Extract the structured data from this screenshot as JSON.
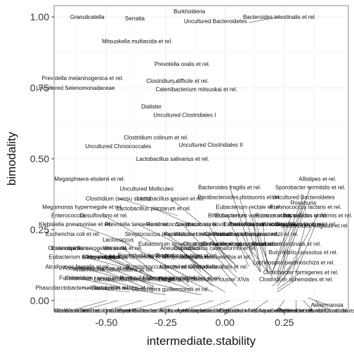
{
  "chart_data": {
    "type": "scatter",
    "xlabel": "intermediate.stability",
    "ylabel": "bimodality",
    "xlim": [
      -0.72,
      0.52
    ],
    "ylim": [
      -0.04,
      1.04
    ],
    "x_ticks": [
      -0.5,
      -0.25,
      0.0,
      0.25
    ],
    "x_tick_labels": [
      "-0.50",
      "-0.25",
      "0.00",
      "0.25"
    ],
    "y_ticks": [
      0.0,
      0.25,
      0.5,
      0.75,
      1.0
    ],
    "y_tick_labels": [
      "0.00",
      "0.25",
      "0.50",
      "0.75",
      "1.00"
    ],
    "grid": true,
    "colors": {
      "panel": "#ffffff",
      "grid_major": "#ececec",
      "grid_minor": "#f6f6f6",
      "border": "#888888",
      "leader": "#444444"
    },
    "points": [
      {
        "label": "Burkholderia",
        "lx": -0.15,
        "ly": 1.02,
        "px": -0.15,
        "py": 1.02
      },
      {
        "label": "Granulicatella",
        "lx": -0.58,
        "ly": 1.0,
        "px": -0.58,
        "py": 1.0
      },
      {
        "label": "Serratia",
        "lx": -0.38,
        "ly": 0.995,
        "px": -0.38,
        "py": 0.995
      },
      {
        "label": "Bacteroides intestinalis et rel.",
        "lx": 0.23,
        "ly": 1.0,
        "px": 0.1,
        "py": 0.98
      },
      {
        "label": "Uncultured Bacteroidetes",
        "lx": -0.04,
        "ly": 0.985,
        "px": -0.04,
        "py": 0.985
      },
      {
        "label": "Mitsuokella multiacida et rel.",
        "lx": -0.37,
        "ly": 0.915,
        "px": -0.37,
        "py": 0.915
      },
      {
        "label": "Prevotella oralis et rel.",
        "lx": -0.18,
        "ly": 0.835,
        "px": -0.18,
        "py": 0.835
      },
      {
        "label": "Prevotella melaninogenica et rel.",
        "lx": -0.6,
        "ly": 0.785,
        "px": -0.6,
        "py": 0.785
      },
      {
        "label": "Clostridium difficile et rel.",
        "lx": -0.2,
        "ly": 0.775,
        "px": -0.22,
        "py": 0.765
      },
      {
        "label": "Uncultured Selenomonadaceae",
        "lx": -0.63,
        "ly": 0.75,
        "px": -0.63,
        "py": 0.75
      },
      {
        "label": "Catenibacterium mitsuokai et rel.",
        "lx": -0.12,
        "ly": 0.745,
        "px": -0.12,
        "py": 0.745
      },
      {
        "label": "Dialister",
        "lx": -0.31,
        "ly": 0.685,
        "px": -0.31,
        "py": 0.685
      },
      {
        "label": "Uncultured Clostridiales I",
        "lx": -0.17,
        "ly": 0.655,
        "px": -0.17,
        "py": 0.655
      },
      {
        "label": "Clostridium colinum et rel.",
        "lx": -0.29,
        "ly": 0.575,
        "px": -0.29,
        "py": 0.575
      },
      {
        "label": "Uncultured Chroococcales",
        "lx": -0.45,
        "ly": 0.545,
        "px": -0.45,
        "py": 0.545
      },
      {
        "label": "Uncultured Clostridiales II",
        "lx": -0.06,
        "ly": 0.55,
        "px": -0.06,
        "py": 0.55
      },
      {
        "label": "Lactobacillus salivarius et rel.",
        "lx": -0.22,
        "ly": 0.5,
        "px": -0.22,
        "py": 0.5
      },
      {
        "label": "Megasphaera elsdenii et rel.",
        "lx": -0.57,
        "ly": 0.43,
        "px": -0.57,
        "py": 0.43
      },
      {
        "label": "Allistipes et rel.",
        "lx": 0.39,
        "ly": 0.43,
        "px": 0.39,
        "py": 0.43
      },
      {
        "label": "Uncultured Mollicutes",
        "lx": -0.33,
        "ly": 0.395,
        "px": -0.33,
        "py": 0.395
      },
      {
        "label": "Bacteroides fragilis et rel.",
        "lx": 0.02,
        "ly": 0.4,
        "px": 0.12,
        "py": 0.15
      },
      {
        "label": "Sporobacter termitidis et rel.",
        "lx": 0.36,
        "ly": 0.4,
        "px": 0.22,
        "py": 0.08
      },
      {
        "label": "Clostridium (sensu stricto)",
        "lx": -0.45,
        "ly": 0.36,
        "px": -0.2,
        "py": 0.3
      },
      {
        "label": "Lactobacillus gasseri et rel.",
        "lx": -0.23,
        "ly": 0.36,
        "px": -0.1,
        "py": 0.27
      },
      {
        "label": "Parabacteroides distasonis et rel.",
        "lx": 0.06,
        "ly": 0.365,
        "px": 0.15,
        "py": 0.12
      },
      {
        "label": "Uncultured Bacteroidetes",
        "lx": 0.33,
        "ly": 0.365,
        "px": 0.2,
        "py": 0.1
      },
      {
        "label": "Megamonas hypermegale et rel.",
        "lx": -0.6,
        "ly": 0.33,
        "px": -0.6,
        "py": 0.33
      },
      {
        "label": "Lactobacillus plantarum et rel.",
        "lx": -0.3,
        "ly": 0.325,
        "px": -0.15,
        "py": 0.27
      },
      {
        "label": "Eubacterium rectale et rel.",
        "lx": 0.1,
        "ly": 0.33,
        "px": 0.18,
        "py": 0.1
      },
      {
        "label": "Ruminococcus lactaris et rel.",
        "lx": 0.34,
        "ly": 0.33,
        "px": 0.22,
        "py": 0.06
      },
      {
        "label": "Roseburia",
        "lx": 0.33,
        "ly": 0.345,
        "px": 0.22,
        "py": 0.1
      },
      {
        "label": "Enterococcus",
        "lx": -0.66,
        "ly": 0.3,
        "px": -0.66,
        "py": 0.3
      },
      {
        "label": "Desulfovibrio et rel.",
        "lx": -0.51,
        "ly": 0.3,
        "px": -0.3,
        "py": 0.2
      },
      {
        "label": "Bifidobacterium",
        "lx": 0.01,
        "ly": 0.3,
        "px": 0.1,
        "py": 0.12
      },
      {
        "label": "Eubacterium ventriosum et rel.",
        "lx": 0.12,
        "ly": 0.3,
        "px": 0.2,
        "py": 0.08
      },
      {
        "label": "Bacteroides uniformis et rel.",
        "lx": 0.39,
        "ly": 0.3,
        "px": 0.25,
        "py": 0.08
      },
      {
        "label": "Ruminococcus callidus et rel.",
        "lx": 0.28,
        "ly": 0.3,
        "px": 0.2,
        "py": 0.1
      },
      {
        "label": "Klebisiella pneumoniae et rel.",
        "lx": -0.63,
        "ly": 0.27,
        "px": -0.4,
        "py": 0.2
      },
      {
        "label": "Prevotella tannerae et rel.",
        "lx": -0.37,
        "ly": 0.27,
        "px": -0.2,
        "py": 0.2
      },
      {
        "label": "Ruminococcus obeum et rel.",
        "lx": -0.18,
        "ly": 0.27,
        "px": -0.05,
        "py": 0.15
      },
      {
        "label": "Streptococcus bovis et rel.",
        "lx": -0.07,
        "ly": 0.27,
        "px": 0.0,
        "py": 0.15
      },
      {
        "label": "Eubacterium hallii et rel.",
        "lx": 0.12,
        "ly": 0.27,
        "px": 0.15,
        "py": 0.1
      },
      {
        "label": "Prevotella ruminicola et rel.",
        "lx": 0.16,
        "ly": 0.27,
        "px": 0.18,
        "py": 0.1
      },
      {
        "label": "Anaerotruncus colihominis et rel.",
        "lx": 0.25,
        "ly": 0.27,
        "px": 0.25,
        "py": 0.1
      },
      {
        "label": "Clostridium leptum et rel.",
        "lx": 0.34,
        "ly": 0.27,
        "px": 0.28,
        "py": 0.08
      },
      {
        "label": "Bacteroides vulgatus et rel.",
        "lx": 0.38,
        "ly": 0.265,
        "px": 0.3,
        "py": 0.1
      },
      {
        "label": "Streptococcus intermedius et rel.",
        "lx": -0.25,
        "ly": 0.235,
        "px": -0.1,
        "py": 0.15
      },
      {
        "label": "Papillibacter cinnamivorans et rel.",
        "lx": -0.08,
        "ly": 0.235,
        "px": 0.05,
        "py": 0.12
      },
      {
        "label": "Clostridium symbiosum et rel.",
        "lx": 0.07,
        "ly": 0.235,
        "px": 0.15,
        "py": 0.1
      },
      {
        "label": "Faecalibacterium prausnitzii et rel.",
        "lx": 0.13,
        "ly": 0.235,
        "px": 0.2,
        "py": 0.1
      },
      {
        "label": "Escherichia coli et rel.",
        "lx": -0.64,
        "ly": 0.235,
        "px": -0.64,
        "py": 0.235
      },
      {
        "label": "Lactococcus",
        "lx": -0.45,
        "ly": 0.215,
        "px": -0.3,
        "py": 0.15
      },
      {
        "label": "Eubacterium siraeum et rel.",
        "lx": -0.22,
        "ly": 0.2,
        "px": -0.1,
        "py": 0.12
      },
      {
        "label": "Clostridium nexile et rel.",
        "lx": -0.05,
        "ly": 0.2,
        "px": 0.05,
        "py": 0.12
      },
      {
        "label": "Dorea formicigenerans et rel.",
        "lx": 0.06,
        "ly": 0.2,
        "px": 0.15,
        "py": 0.1
      },
      {
        "label": "Ruminococcus gnavus et rel.",
        "lx": 0.09,
        "ly": 0.2,
        "px": 0.18,
        "py": 0.1
      },
      {
        "label": "Roseburia intestinalis et rel.",
        "lx": 0.26,
        "ly": 0.2,
        "px": 0.26,
        "py": 0.2
      },
      {
        "label": "Oceanospirillum",
        "lx": -0.66,
        "ly": 0.185,
        "px": -0.66,
        "py": 0.185
      },
      {
        "label": "Enterobacter aerogenes et rel.",
        "lx": -0.57,
        "ly": 0.185,
        "px": -0.4,
        "py": 0.12
      },
      {
        "label": "Weissella et rel.",
        "lx": -0.43,
        "ly": 0.185,
        "px": -0.3,
        "py": 0.1
      },
      {
        "label": "Aneurinibacillus",
        "lx": -0.19,
        "ly": 0.185,
        "px": -0.1,
        "py": 0.1
      },
      {
        "label": "Coprobacillus catenaformis et rel.",
        "lx": -0.04,
        "ly": 0.185,
        "px": 0.05,
        "py": 0.1
      },
      {
        "label": "Butyrivibrio crossotus et rel.",
        "lx": 0.33,
        "ly": 0.17,
        "px": 0.22,
        "py": 0.05
      },
      {
        "label": "Eubacterium biforme et rel.",
        "lx": -0.6,
        "ly": 0.155,
        "px": -0.35,
        "py": 0.1
      },
      {
        "label": "Campylobacter",
        "lx": -0.52,
        "ly": 0.155,
        "px": -0.3,
        "py": 0.08
      },
      {
        "label": "Haemophilus",
        "lx": -0.51,
        "ly": 0.155,
        "px": -0.3,
        "py": 0.08
      },
      {
        "label": "Bacillus",
        "lx": -0.45,
        "ly": 0.155,
        "px": -0.3,
        "py": 0.08
      },
      {
        "label": "Eggerthella lenta et rel.",
        "lx": -0.33,
        "ly": 0.16,
        "px": -0.15,
        "py": 0.08
      },
      {
        "label": "Tannerella et rel.",
        "lx": -0.32,
        "ly": 0.155,
        "px": -0.15,
        "py": 0.08
      },
      {
        "label": "Peptococcus niger et rel.",
        "lx": -0.16,
        "ly": 0.16,
        "px": -0.05,
        "py": 0.08
      },
      {
        "label": "Propionibacterium",
        "lx": -0.16,
        "ly": 0.155,
        "px": -0.05,
        "py": 0.08
      },
      {
        "label": "Sutterella wadsworthia et rel.",
        "lx": -0.04,
        "ly": 0.155,
        "px": 0.05,
        "py": 0.08
      },
      {
        "label": "Lachnospira pectinoschiza et rel.",
        "lx": 0.29,
        "ly": 0.135,
        "px": 0.2,
        "py": 0.05
      },
      {
        "label": "Alcaligenes faecalis et rel.",
        "lx": -0.62,
        "ly": 0.12,
        "px": -0.45,
        "py": 0.08
      },
      {
        "label": "Anaerostipes caccae et rel.",
        "lx": -0.54,
        "ly": 0.115,
        "px": -0.35,
        "py": 0.05
      },
      {
        "label": "Anaerovorax odorimutans et rel.",
        "lx": -0.47,
        "ly": 0.11,
        "px": -0.3,
        "py": 0.05
      },
      {
        "label": "Ruminococcus bromii et rel.",
        "lx": -0.27,
        "ly": 0.12,
        "px": -0.15,
        "py": 0.05
      },
      {
        "label": "Uncultured Clostridiales II",
        "lx": -0.14,
        "ly": 0.12,
        "px": -0.05,
        "py": 0.05
      },
      {
        "label": "Prevotella oralis et rel.",
        "lx": -0.02,
        "ly": 0.12,
        "px": 0.05,
        "py": 0.05
      },
      {
        "label": "Oxalobacter formigenes et rel.",
        "lx": 0.32,
        "ly": 0.1,
        "px": 0.22,
        "py": 0.04
      },
      {
        "label": "Fusobacteria",
        "lx": -0.63,
        "ly": 0.08,
        "px": -0.45,
        "py": 0.05
      },
      {
        "label": "Clostridium ramosum et rel.",
        "lx": -0.53,
        "ly": 0.08,
        "px": -0.35,
        "py": 0.04
      },
      {
        "label": "Lactobacillus catenaformis et rel.",
        "lx": -0.38,
        "ly": 0.075,
        "px": -0.2,
        "py": 0.04
      },
      {
        "label": "Bryantella formatexigens et rel.",
        "lx": -0.28,
        "ly": 0.08,
        "px": -0.15,
        "py": 0.04
      },
      {
        "label": "Eubacterium cylindroides et rel.",
        "lx": -0.18,
        "ly": 0.08,
        "px": -0.05,
        "py": 0.03
      },
      {
        "label": "Outgrouping clostridium cluster XIVa",
        "lx": -0.09,
        "ly": 0.075,
        "px": 0.0,
        "py": 0.03
      },
      {
        "label": "Clostridium sphenoides et rel.",
        "lx": 0.3,
        "ly": 0.075,
        "px": 0.22,
        "py": 0.03
      },
      {
        "label": "Phascolarctobacterium faecium et rel.",
        "lx": -0.6,
        "ly": 0.045,
        "px": -0.4,
        "py": 0.03
      },
      {
        "label": "Bacteroides ovatus et rel.",
        "lx": -0.43,
        "ly": 0.045,
        "px": -0.25,
        "py": 0.02
      },
      {
        "label": "Oscillospira guillermondii et rel.",
        "lx": -0.23,
        "ly": 0.04,
        "px": -0.1,
        "py": 0.02
      },
      {
        "label": "Akkermansia",
        "lx": 0.43,
        "ly": -0.015,
        "px": 0.35,
        "py": 0.01
      },
      {
        "label": "Vibrio",
        "lx": -0.69,
        "ly": -0.035,
        "px": -0.69,
        "py": -0.035
      },
      {
        "label": "Yersinia et rel.",
        "lx": -0.65,
        "ly": -0.035,
        "px": -0.5,
        "py": 0.0
      },
      {
        "label": "Wissella et rel.",
        "lx": -0.6,
        "ly": -0.035,
        "px": -0.45,
        "py": 0.0
      },
      {
        "label": "Xanthomonadaceae",
        "lx": -0.5,
        "ly": -0.035,
        "px": -0.35,
        "py": 0.0
      },
      {
        "label": "Uncultured Mollicutes",
        "lx": -0.4,
        "ly": -0.035,
        "px": -0.25,
        "py": 0.0
      },
      {
        "label": "Sporobacter termitidis et rel.",
        "lx": -0.3,
        "ly": -0.035,
        "px": -0.15,
        "py": 0.0
      },
      {
        "label": "Actinomycetaceae",
        "lx": -0.18,
        "ly": -0.035,
        "px": -0.05,
        "py": 0.0
      },
      {
        "label": "Asteroleplasma et rel.",
        "lx": -0.09,
        "ly": -0.035,
        "px": 0.02,
        "py": 0.0
      },
      {
        "label": "Lactobacillus gasseri et rel.",
        "lx": 0.0,
        "ly": -0.035,
        "px": 0.1,
        "py": 0.0
      },
      {
        "label": "Clostridium felsineum et rel.",
        "lx": 0.12,
        "ly": -0.035,
        "px": 0.18,
        "py": 0.0
      },
      {
        "label": "Aquabacterium",
        "lx": 0.22,
        "ly": -0.035,
        "px": 0.25,
        "py": 0.0
      },
      {
        "label": "Proteus et rel.",
        "lx": 0.3,
        "ly": -0.035,
        "px": 0.3,
        "py": 0.0
      },
      {
        "label": "Ruminococcus obeum et rel.",
        "lx": 0.37,
        "ly": -0.035,
        "px": 0.33,
        "py": 0.0
      },
      {
        "label": "Uncultured Clostridiales I",
        "lx": 0.43,
        "ly": -0.035,
        "px": 0.38,
        "py": 0.0
      }
    ]
  }
}
